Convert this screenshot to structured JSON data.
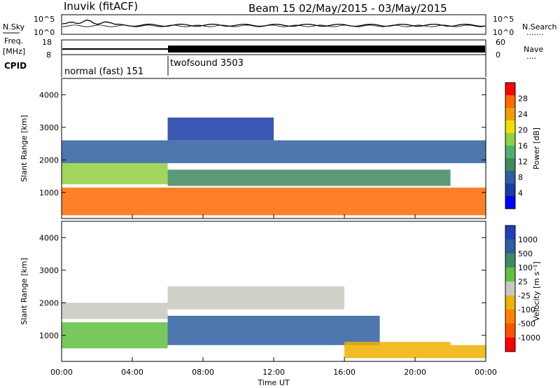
{
  "header": {
    "site": "Inuvik (fitACF)",
    "beam_date": "Beam 15 02/May/2015 - 03/May/2015"
  },
  "noise_panel": {
    "left_label": "N.Sky",
    "left_ticks": [
      "10^5",
      "10^0"
    ],
    "right_ticks": [
      "10^5",
      "10^0"
    ],
    "right_label": "N.Search",
    "right_dots": "......."
  },
  "freq_panel": {
    "left_label_1": "Freq.",
    "left_label_2": "[MHz]",
    "left_ticks": [
      "18",
      "8"
    ],
    "right_ticks": [
      "60",
      "0"
    ],
    "right_label": "Nave",
    "right_dots": "...."
  },
  "cpid_panel": {
    "label": "CPID",
    "modes": [
      {
        "name": "normal (fast) 151",
        "start_hour": 0
      },
      {
        "name": "twofsound 3503",
        "start_hour": 6
      }
    ]
  },
  "axes": {
    "ylabel": "Slant Range [km]",
    "yticks": [
      "4000",
      "3000",
      "2000",
      "1000"
    ],
    "xticks": [
      "00:00",
      "04:00",
      "08:00",
      "12:00",
      "16:00",
      "20:00",
      "00:00"
    ],
    "xlabel": "Time UT"
  },
  "power_colorbar": {
    "label": "Power [dB]",
    "ticks": [
      "28",
      "24",
      "20",
      "16",
      "12",
      "8",
      "4"
    ],
    "colors": [
      "#0000ff",
      "#1a3ba8",
      "#2f5fa0",
      "#3f8a5f",
      "#50b070",
      "#8fd040",
      "#f0e000",
      "#f0a000",
      "#ff6a00",
      "#ff0000"
    ]
  },
  "velocity_colorbar": {
    "label": "Velocity [m s⁻¹]",
    "ticks": [
      "1000",
      "500",
      "100",
      "25",
      "-25",
      "-100",
      "-500",
      "-1000"
    ],
    "colors": [
      "#1f3fbf",
      "#2f5fa0",
      "#3f8a5f",
      "#60c040",
      "#c8c8c0",
      "#f0b000",
      "#ff8000",
      "#ff5000",
      "#ff0000"
    ]
  },
  "chart_data": [
    {
      "type": "heatmap",
      "title": "Power [dB]",
      "xlabel": "Time UT",
      "ylabel": "Slant Range [km]",
      "xlim": [
        0,
        24
      ],
      "ylim": [
        200,
        4500
      ],
      "bands": [
        {
          "x": [
            0,
            24
          ],
          "y": [
            300,
            1150
          ],
          "value": 26
        },
        {
          "x": [
            0,
            6
          ],
          "y": [
            1250,
            1900
          ],
          "value": 16
        },
        {
          "x": [
            6,
            22
          ],
          "y": [
            1200,
            1700
          ],
          "value": 12
        },
        {
          "x": [
            0,
            24
          ],
          "y": [
            1900,
            2600
          ],
          "value": 8
        },
        {
          "x": [
            6,
            12
          ],
          "y": [
            2600,
            3300
          ],
          "value": 6
        }
      ]
    },
    {
      "type": "heatmap",
      "title": "Velocity [m s⁻¹]",
      "xlabel": "Time UT",
      "ylabel": "Slant Range [km]",
      "xlim": [
        0,
        24
      ],
      "ylim": [
        200,
        4500
      ],
      "bands": [
        {
          "x": [
            0,
            6
          ],
          "y": [
            1500,
            2000
          ],
          "value": 0
        },
        {
          "x": [
            6,
            16
          ],
          "y": [
            1800,
            2500
          ],
          "value": 0
        },
        {
          "x": [
            0,
            6
          ],
          "y": [
            600,
            1400
          ],
          "value": 200
        },
        {
          "x": [
            6,
            18
          ],
          "y": [
            700,
            1600
          ],
          "value": 700
        },
        {
          "x": [
            16,
            22
          ],
          "y": [
            300,
            800
          ],
          "value": -150
        },
        {
          "x": [
            22,
            24
          ],
          "y": [
            300,
            700
          ],
          "value": -300
        }
      ]
    }
  ]
}
